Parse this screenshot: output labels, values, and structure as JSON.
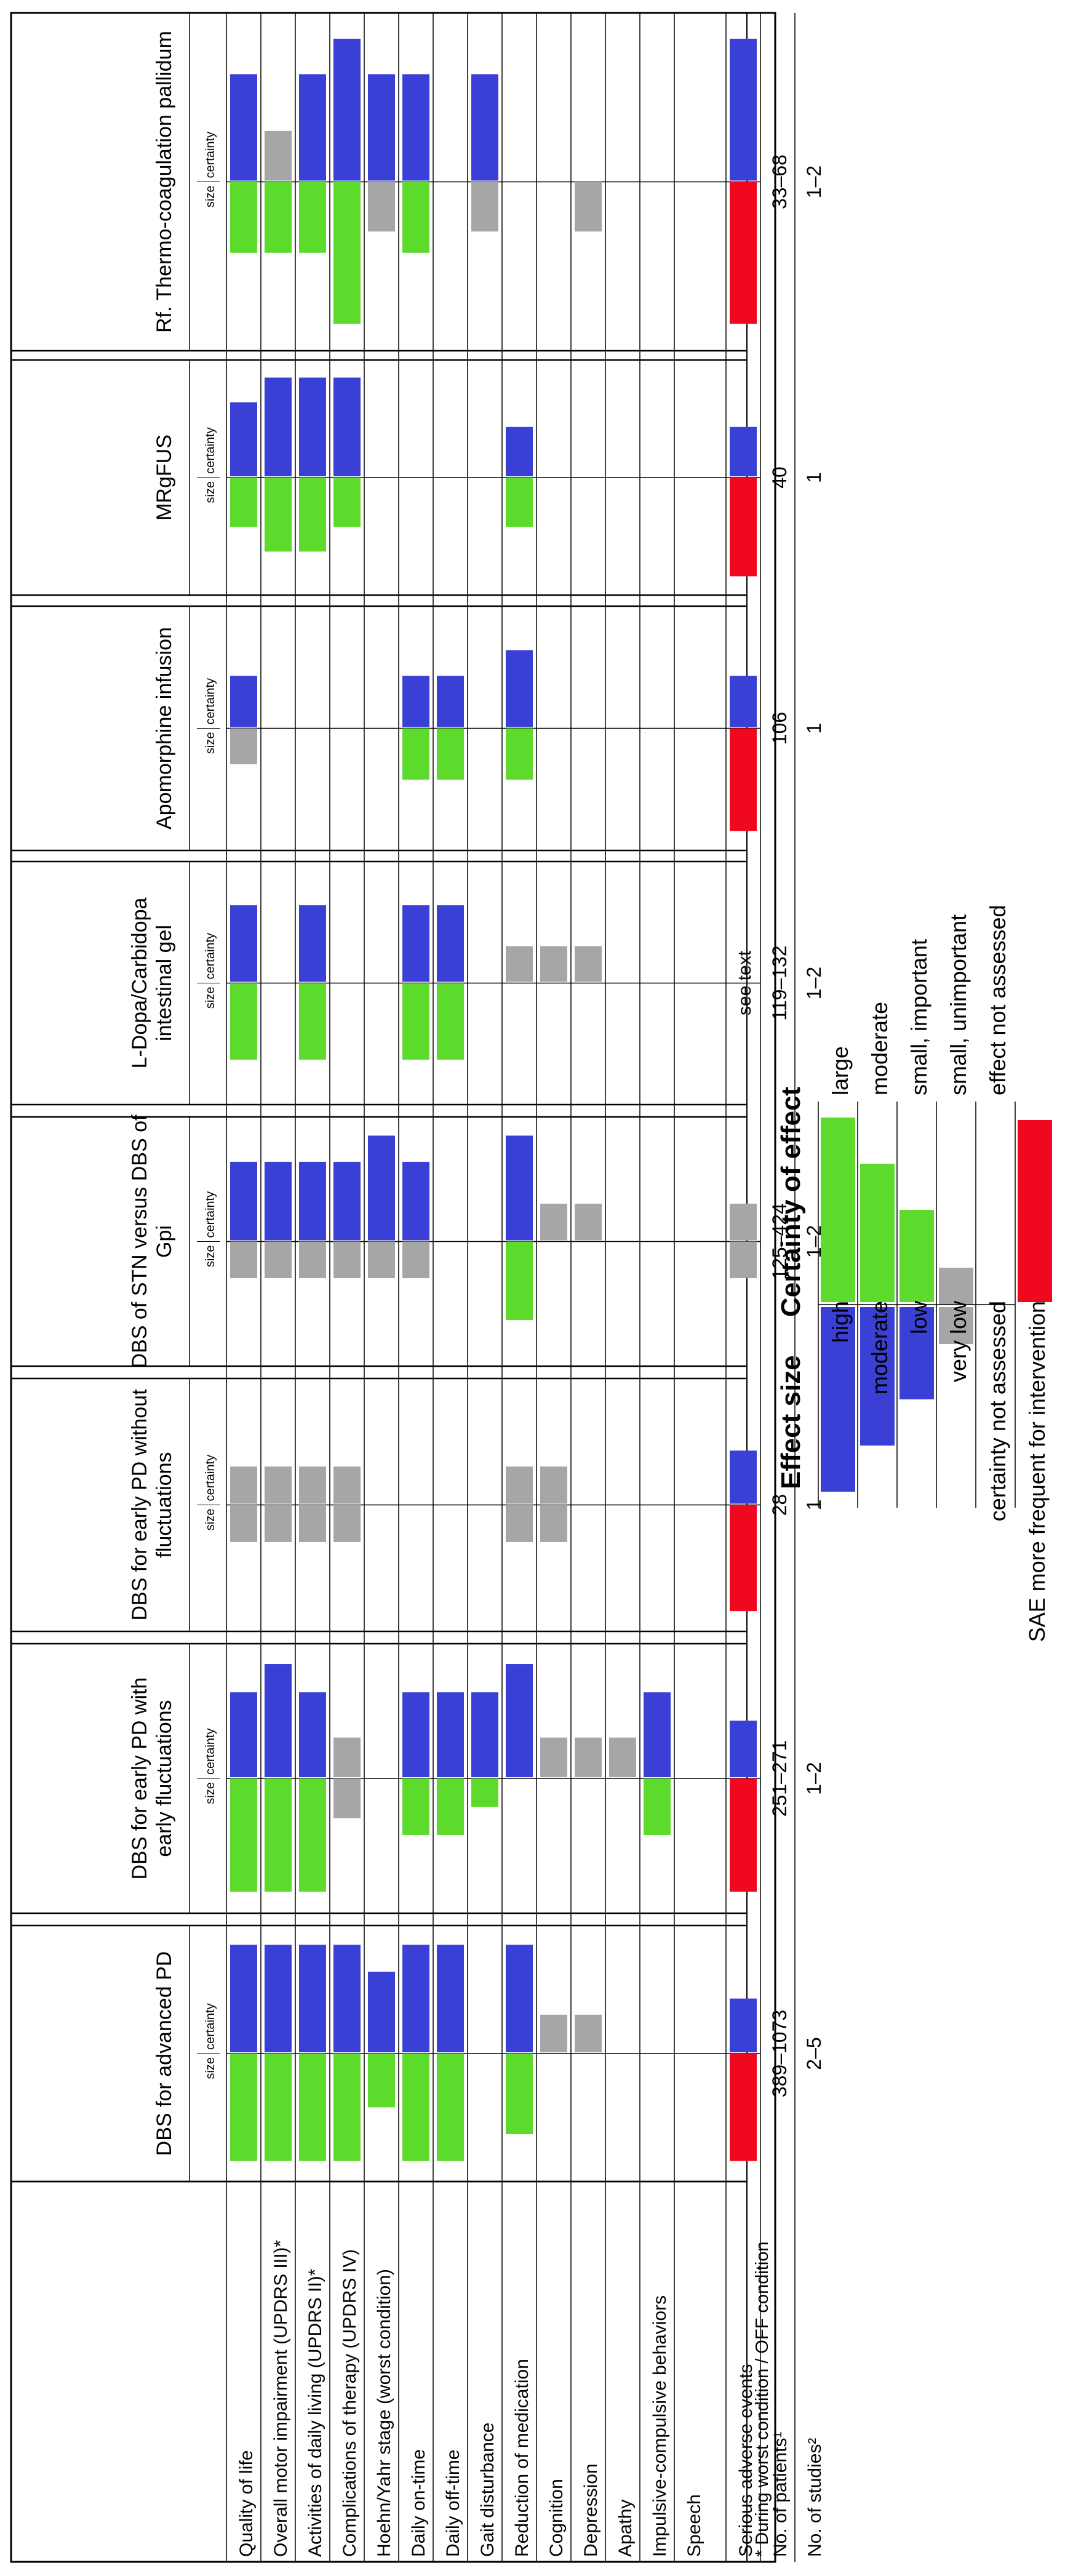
{
  "title": "",
  "colors": {
    "size": "#5ddb2c",
    "certainty": "#3a3fd6",
    "not_assessed": "#a6a6a6",
    "sae": "#f0081e"
  },
  "size_label": "size",
  "certainty_label": "certainty",
  "outcomes": [
    "Quality of life",
    "Overall motor impairment (UPDRS III)*",
    "Activities of daily living (UPDRS II)*",
    "Complications of therapy (UPDRS IV)",
    "Hoehn/Yahr stage (worst condition)",
    "Daily on-time",
    "Daily off-time",
    "Gait disturbance",
    "Reduction of medication",
    "Cognition",
    "Depression",
    "Apathy",
    "Impulsive-compulsive behaviors",
    "Speech",
    "Serious adverse events",
    "No. of patients¹",
    "No. of studies²"
  ],
  "footnote": "* During worst condition / OFF condition",
  "chart_data": {
    "type": "table",
    "encoding": {
      "size": {
        "large": 4,
        "moderate": 3,
        "small, important": 2,
        "small, unimportant": 1,
        "effect not assessed": 0,
        "not_assessed": "na"
      },
      "certainty": {
        "high": 4,
        "moderate": 3,
        "low": 2,
        "very low": 1,
        "certainty not assessed": 0,
        "not_assessed": "na"
      }
    },
    "interventions": [
      {
        "name": "DBS for advanced PD",
        "size": [
          4,
          4,
          4,
          4,
          2,
          4,
          4,
          0,
          3,
          0,
          0,
          0,
          0,
          0
        ],
        "certainty": [
          4,
          4,
          4,
          4,
          3,
          4,
          4,
          0,
          4,
          4,
          4,
          0,
          0,
          0
        ],
        "na_size": [
          false,
          false,
          false,
          false,
          false,
          false,
          false,
          false,
          false,
          false,
          false,
          false,
          false,
          false
        ],
        "na_certainty": [
          false,
          false,
          false,
          false,
          false,
          false,
          false,
          false,
          false,
          true,
          true,
          false,
          false,
          false
        ],
        "sae_size": true,
        "sae_certainty": 2,
        "patients": "389–1073",
        "studies": "2–5"
      },
      {
        "name": "DBS for early PD with early fluctuations",
        "size": [
          4,
          4,
          4,
          0,
          0,
          2,
          2,
          1,
          0,
          0,
          0,
          0,
          2,
          0
        ],
        "certainty": [
          3,
          4,
          3,
          1,
          0,
          3,
          3,
          3,
          4,
          3,
          3,
          3,
          3,
          0
        ],
        "na_size": [
          false,
          false,
          false,
          true,
          false,
          false,
          false,
          false,
          false,
          false,
          false,
          false,
          false,
          false
        ],
        "na_certainty": [
          false,
          false,
          false,
          true,
          false,
          false,
          false,
          false,
          false,
          true,
          true,
          true,
          false,
          false
        ],
        "sae_size": true,
        "sae_certainty": 2,
        "patients": "251–271",
        "studies": "1–2"
      },
      {
        "name": "DBS for early PD without fluctuations",
        "size": [
          0,
          0,
          0,
          0,
          0,
          0,
          0,
          0,
          0,
          0,
          0,
          0,
          0,
          0
        ],
        "certainty": [
          0,
          0,
          0,
          0,
          0,
          0,
          0,
          0,
          0,
          0,
          0,
          0,
          0,
          0
        ],
        "na_size": [
          true,
          true,
          true,
          true,
          false,
          false,
          false,
          false,
          true,
          true,
          false,
          false,
          false,
          false
        ],
        "na_certainty": [
          true,
          true,
          true,
          true,
          false,
          false,
          false,
          false,
          true,
          true,
          false,
          false,
          false,
          false
        ],
        "sae_size": true,
        "sae_certainty": 2,
        "patients": "28",
        "studies": "1"
      },
      {
        "name": "DBS of STN versus DBS of Gpi",
        "size": [
          0,
          0,
          0,
          0,
          0,
          0,
          0,
          0,
          3,
          0,
          0,
          0,
          0,
          0
        ],
        "certainty": [
          3,
          3,
          3,
          3,
          4,
          3,
          0,
          0,
          4,
          3,
          3,
          0,
          0,
          0
        ],
        "na_size": [
          true,
          true,
          true,
          true,
          true,
          true,
          false,
          false,
          false,
          false,
          false,
          false,
          false,
          false
        ],
        "na_certainty": [
          false,
          false,
          false,
          false,
          false,
          false,
          false,
          false,
          false,
          true,
          true,
          false,
          false,
          false
        ],
        "sae_size": "na",
        "sae_certainty": 0,
        "sae_na": true,
        "patients": "125–424",
        "studies": "1–2"
      },
      {
        "name": "L-Dopa/Carbidopa intestinal gel",
        "size": [
          3,
          0,
          3,
          0,
          0,
          3,
          3,
          0,
          0,
          0,
          0,
          0,
          0,
          0
        ],
        "certainty": [
          3,
          0,
          3,
          0,
          0,
          3,
          3,
          0,
          3,
          3,
          3,
          0,
          0,
          0
        ],
        "na_size": [
          false,
          false,
          false,
          false,
          false,
          false,
          false,
          false,
          false,
          false,
          false,
          false,
          false,
          false
        ],
        "na_certainty": [
          false,
          false,
          false,
          false,
          false,
          false,
          false,
          false,
          true,
          true,
          true,
          false,
          false,
          false
        ],
        "sae_size": false,
        "sae_certainty": 0,
        "sae_text": "see text",
        "patients": "119–132",
        "studies": "1–2"
      },
      {
        "name": "Apomorphine infusion",
        "size": [
          0,
          0,
          0,
          0,
          0,
          2,
          2,
          0,
          2,
          0,
          0,
          0,
          0,
          0
        ],
        "certainty": [
          2,
          0,
          0,
          0,
          0,
          2,
          2,
          0,
          3,
          0,
          0,
          0,
          0,
          0
        ],
        "na_size": [
          true,
          false,
          false,
          false,
          false,
          false,
          false,
          false,
          false,
          false,
          false,
          false,
          false,
          false
        ],
        "na_certainty": [
          false,
          false,
          false,
          false,
          false,
          false,
          false,
          false,
          false,
          false,
          false,
          false,
          false,
          false
        ],
        "sae_size": true,
        "sae_certainty": 2,
        "patients": "106",
        "studies": "1"
      },
      {
        "name": "MRgFUS",
        "size": [
          2,
          3,
          3,
          2,
          0,
          0,
          0,
          0,
          2,
          0,
          0,
          0,
          0,
          0
        ],
        "certainty": [
          3,
          4,
          4,
          4,
          0,
          0,
          0,
          0,
          2,
          0,
          0,
          0,
          0,
          0
        ],
        "na_size": [
          false,
          false,
          false,
          false,
          false,
          false,
          false,
          false,
          false,
          false,
          false,
          false,
          false,
          false
        ],
        "na_certainty": [
          false,
          false,
          false,
          false,
          false,
          false,
          false,
          false,
          false,
          false,
          false,
          false,
          false,
          false
        ],
        "sae_size": true,
        "sae_certainty": 2,
        "patients": "40",
        "studies": "1"
      },
      {
        "name": "Rf. Thermo-coagulation pallidum",
        "size": [
          2,
          2,
          2,
          4,
          0,
          2,
          0,
          0,
          0,
          0,
          0,
          0,
          0,
          0
        ],
        "certainty": [
          3,
          0,
          3,
          4,
          3,
          3,
          0,
          3,
          0,
          0,
          0,
          0,
          0,
          0
        ],
        "na_size": [
          false,
          false,
          false,
          false,
          true,
          false,
          false,
          true,
          false,
          false,
          true,
          false,
          false,
          false
        ],
        "na_certainty": [
          false,
          true,
          false,
          false,
          false,
          false,
          false,
          false,
          false,
          false,
          false,
          false,
          false,
          false
        ],
        "sae_size": true,
        "sae_certainty": 4,
        "patients": "33–68",
        "studies": "1–2"
      }
    ],
    "legend": {
      "size_title": "Effect size",
      "certainty_title": "Certainty of effect",
      "size_labels": [
        "large",
        "moderate",
        "small, important",
        "small, unimportant",
        "effect not assessed"
      ],
      "certainty_labels": [
        "high",
        "moderate",
        "low",
        "very low",
        "certainty not assessed"
      ],
      "sae_label": "SAE more frequent for intervention"
    }
  }
}
